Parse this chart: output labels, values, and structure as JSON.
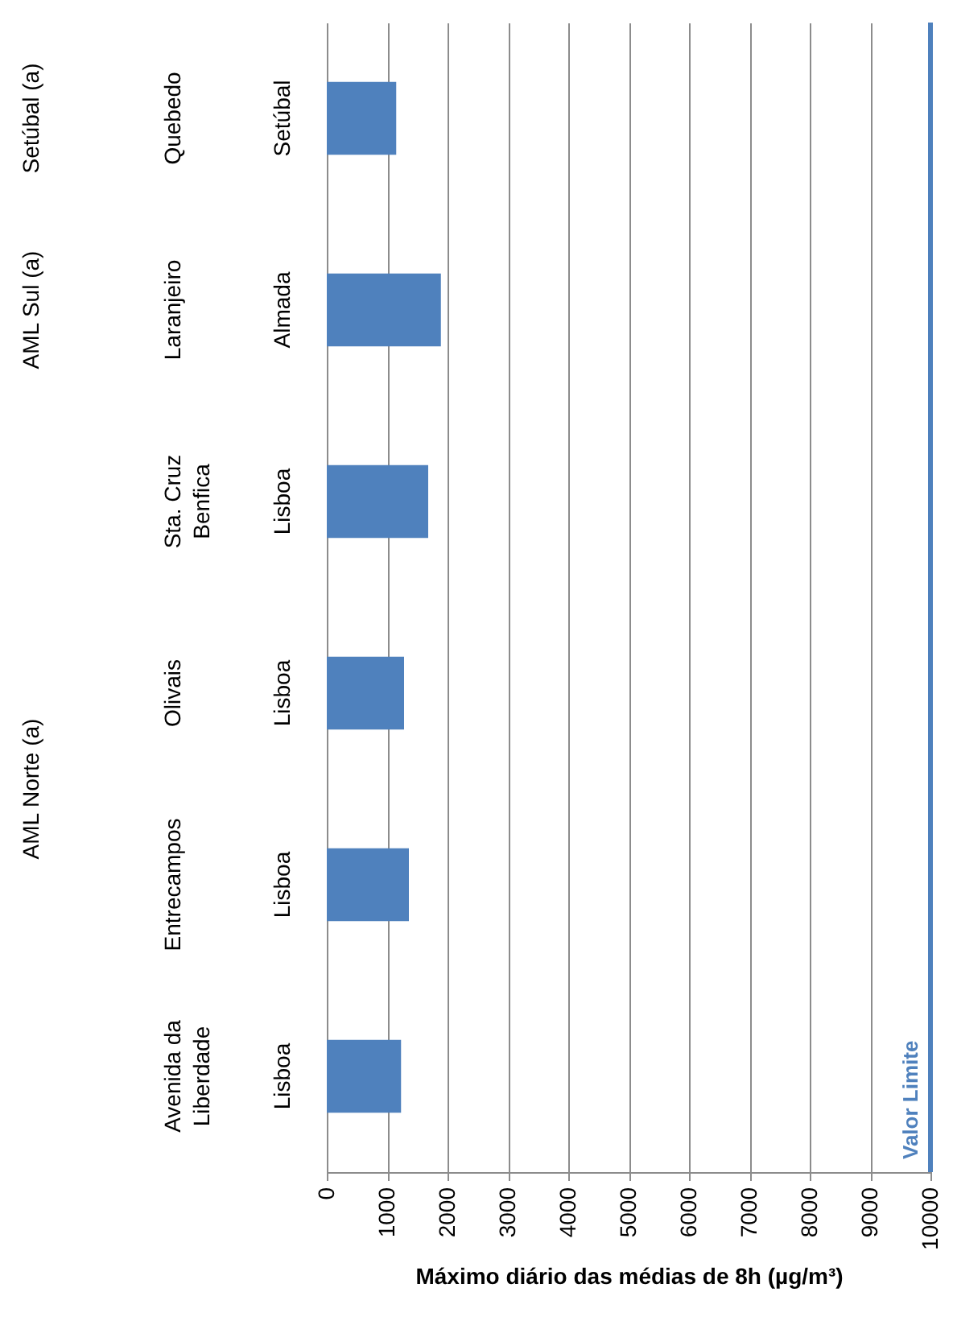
{
  "chart_data": {
    "type": "bar",
    "orientation": "horizontal",
    "categories": [
      "Quebedo",
      "Laranjeiro",
      "Sta. Cruz Benfica",
      "Olivais",
      "Entrecampos",
      "Avenida da Liberdade"
    ],
    "values": [
      1150,
      1890,
      1680,
      1280,
      1360,
      1230
    ],
    "color": "#4f81bd",
    "xlabel": "Máximo diário das médias de 8h (µg/m³)",
    "xlim": [
      0,
      10000
    ],
    "xticks": [
      0,
      1000,
      2000,
      3000,
      4000,
      5000,
      6000,
      7000,
      8000,
      9000,
      10000
    ],
    "grid": "x",
    "ref_lines": [
      {
        "axis": "x",
        "value": 10000,
        "label": "Valor Limite",
        "color": "#4f81bd"
      }
    ],
    "annotations": [
      "Setúbal",
      "Almada",
      "Lisboa",
      "Lisboa",
      "Lisboa",
      "Lisboa",
      "Setúbal (a)",
      "AML Sul (a)",
      "AML Norte (a)"
    ]
  }
}
